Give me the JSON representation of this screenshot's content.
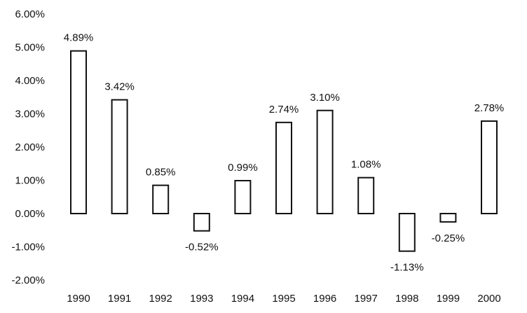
{
  "chart_data": {
    "type": "bar",
    "categories": [
      "1990",
      "1991",
      "1992",
      "1993",
      "1994",
      "1995",
      "1996",
      "1997",
      "1998",
      "1999",
      "2000"
    ],
    "values": [
      4.89,
      3.42,
      0.85,
      -0.52,
      0.99,
      2.74,
      3.1,
      1.08,
      -1.13,
      -0.25,
      2.78
    ],
    "data_labels": [
      "4.89%",
      "3.42%",
      "0.85%",
      "-0.52%",
      "0.99%",
      "2.74%",
      "3.10%",
      "1.08%",
      "-1.13%",
      "-0.25%",
      "2.78%"
    ],
    "y_ticks": [
      6,
      5,
      4,
      3,
      2,
      1,
      0,
      -1,
      -2
    ],
    "y_tick_labels": [
      "6.00%",
      "5.00%",
      "4.00%",
      "3.00%",
      "2.00%",
      "1.00%",
      "0.00%",
      "-1.00%",
      "-2.00%"
    ],
    "ylim": [
      -2,
      6
    ],
    "grid": false,
    "legend": "none",
    "colors": {
      "bar_fill": "#ffffff",
      "bar_stroke": "#111111",
      "text": "#111111"
    }
  }
}
